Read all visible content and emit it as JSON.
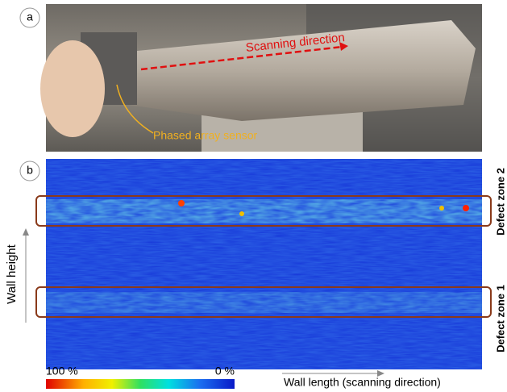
{
  "panel_a": {
    "label": "a",
    "arrow_label": "Scanning direction",
    "sensor_label": "Phased array sensor"
  },
  "panel_b": {
    "label": "b",
    "y_axis_label": "Wall height",
    "x_axis_label": "Wall length (scanning direction)",
    "zones": [
      "Defect zone 2",
      "Defect zone 1"
    ],
    "colorbar_max": "100 %",
    "colorbar_min": "0 %"
  }
}
